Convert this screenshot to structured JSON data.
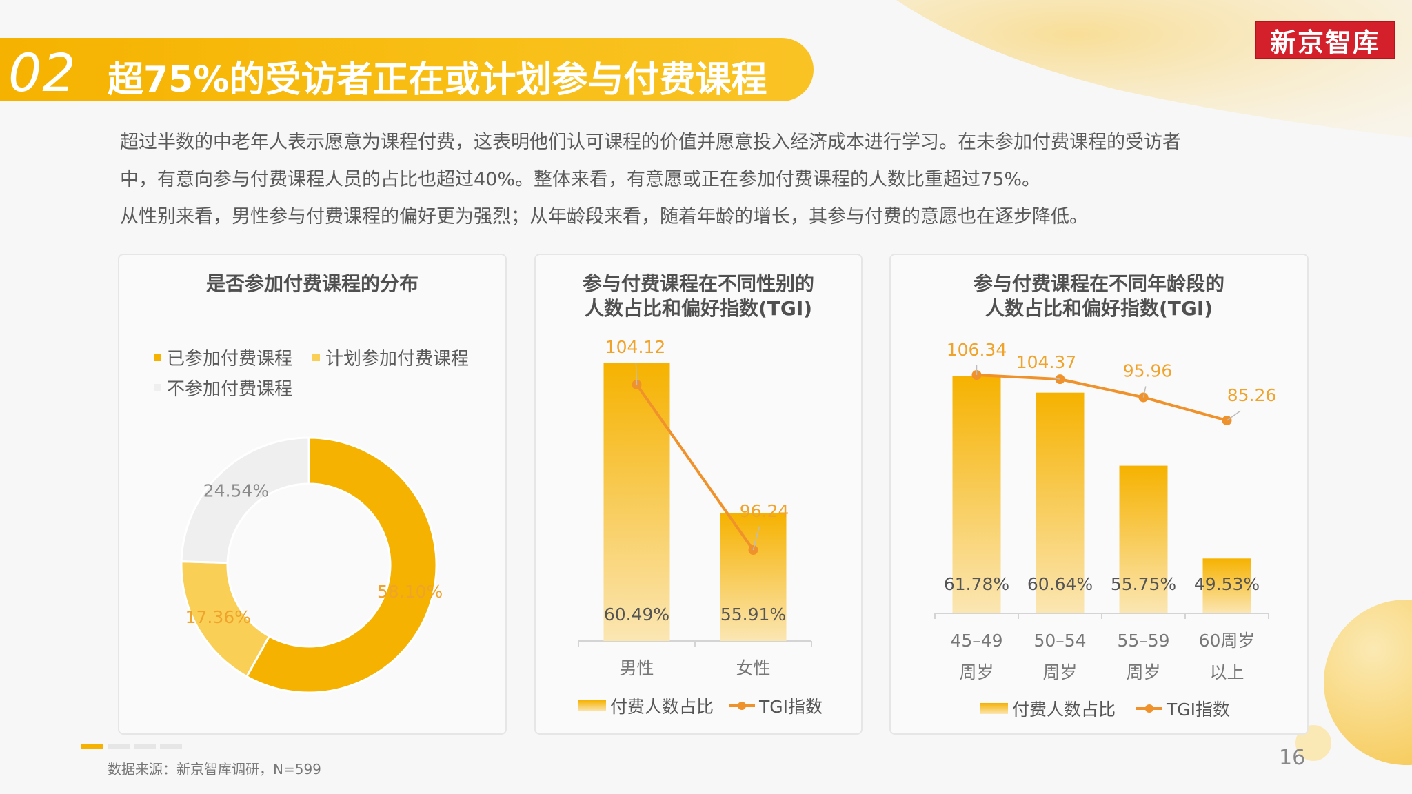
{
  "header": {
    "section_number": "02",
    "title": "超75%的受访者正在或计划参与付费课程",
    "logo_text": "新京智库"
  },
  "intro": {
    "lines": [
      "超过半数的中老年人表示愿意为课程付费，这表明他们认可课程的价值并愿意投入经济成本进行学习。在未参加付费课程的受访者",
      "中，有意向参与付费课程人员的占比也超过40%。整体来看，有意愿或正在参加付费课程的人数比重超过75%。",
      "从性别来看，男性参与付费课程的偏好更为强烈；从年龄段来看，随着年龄的增长，其参与付费的意愿也在逐步降低。"
    ]
  },
  "colors": {
    "accent": "#f6b200",
    "accent_light": "#f9cf56",
    "gray_slice": "#efefef",
    "tgi_line": "#f0922b",
    "label_orange": "#f0a32b"
  },
  "chart_data": [
    {
      "type": "pie",
      "style": "donut",
      "title": "是否参加付费课程的分布",
      "categories": [
        "已参加付费课程",
        "计划参加付费课程",
        "不参加付费课程"
      ],
      "values": [
        58.1,
        17.36,
        24.54
      ],
      "value_labels": [
        "58.10%",
        "17.36%",
        "24.54%"
      ],
      "colors": [
        "#f6b200",
        "#f9cf56",
        "#efefef"
      ],
      "legend_position": "top"
    },
    {
      "type": "bar",
      "title_lines": [
        "参与付费课程在不同性别的",
        "人数占比和偏好指数(TGI)"
      ],
      "categories": [
        "男性",
        "女性"
      ],
      "series": [
        {
          "name": "付费人数占比",
          "kind": "bar",
          "values": [
            60.49,
            55.91
          ],
          "labels": [
            "60.49%",
            "55.91%"
          ]
        },
        {
          "name": "TGI指数",
          "kind": "line",
          "values": [
            104.12,
            96.24
          ],
          "labels": [
            "104.12",
            "96.24"
          ]
        }
      ],
      "legend_position": "bottom"
    },
    {
      "type": "bar",
      "title_lines": [
        "参与付费课程在不同年龄段的",
        "人数占比和偏好指数(TGI)"
      ],
      "categories": [
        "45-49\n周岁",
        "50-54\n周岁",
        "55-59\n周岁",
        "60周岁\n以上"
      ],
      "category_lines": [
        [
          "45–49",
          "周岁"
        ],
        [
          "50–54",
          "周岁"
        ],
        [
          "55–59",
          "周岁"
        ],
        [
          "60周岁",
          "以上"
        ]
      ],
      "series": [
        {
          "name": "付费人数占比",
          "kind": "bar",
          "values": [
            61.78,
            60.64,
            55.75,
            49.53
          ],
          "labels": [
            "61.78%",
            "60.64%",
            "55.75%",
            "49.53%"
          ]
        },
        {
          "name": "TGI指数",
          "kind": "line",
          "values": [
            106.34,
            104.37,
            95.96,
            85.26
          ],
          "labels": [
            "106.34",
            "104.37",
            "95.96",
            "85.26"
          ]
        }
      ],
      "legend_position": "bottom"
    }
  ],
  "footer": {
    "source": "数据来源：新京智库调研，N=599",
    "page_number": "16"
  }
}
